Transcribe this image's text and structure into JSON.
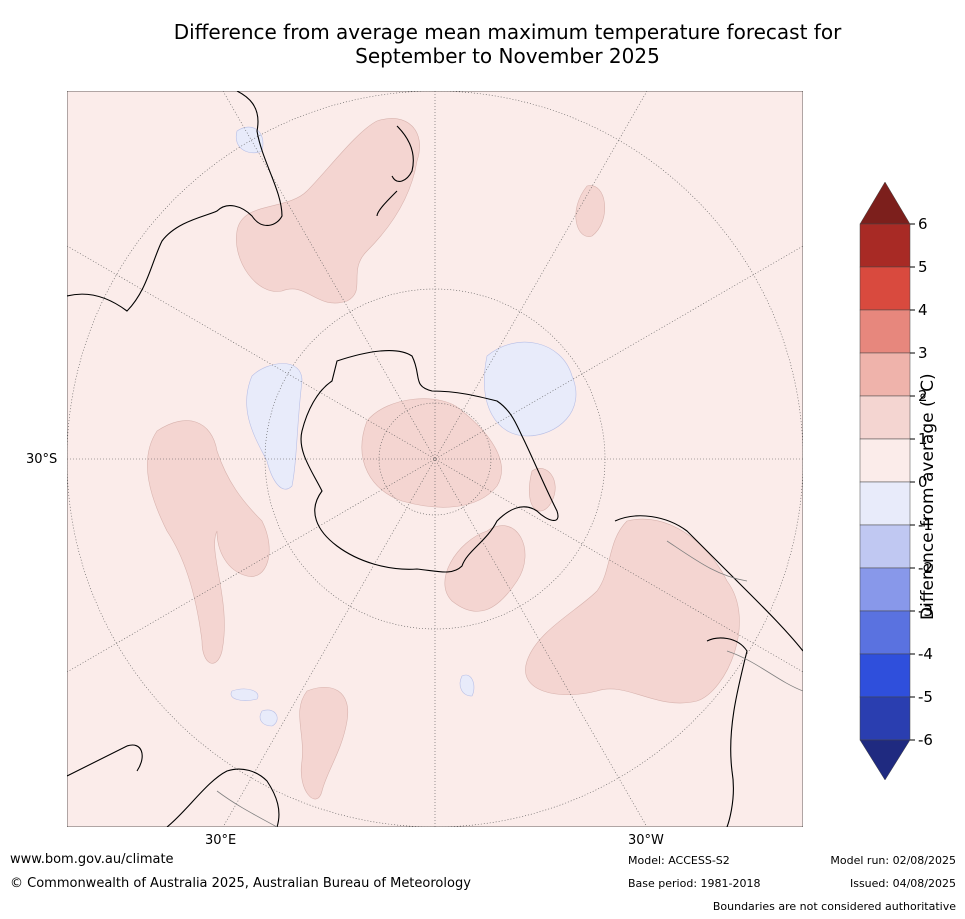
{
  "title": {
    "line1": "Difference from average mean maximum temperature forecast for",
    "line2": "September to November 2025"
  },
  "map": {
    "projection": "south-polar-stereographic",
    "labels": {
      "lat_30s": "30°S",
      "lon_30e": "30°E",
      "lon_30w": "30°W"
    },
    "colors": {
      "background": "#fbecea",
      "warm_1_2": "#f4d5d1",
      "cool_0_-1": "#e8ebfa",
      "coast": "#000000",
      "border": "#808080"
    }
  },
  "colorbar": {
    "label": "Difference from average (°C)",
    "ticks": [
      "6",
      "5",
      "4",
      "3",
      "2",
      "1",
      "0",
      "-1",
      "-2",
      "-3",
      "-4",
      "-5",
      "-6"
    ],
    "bands": [
      {
        "from": 6,
        "to": 7,
        "color": "#7c1f1c"
      },
      {
        "from": 5,
        "to": 6,
        "color": "#a82a25"
      },
      {
        "from": 4,
        "to": 5,
        "color": "#d94a3e"
      },
      {
        "from": 3,
        "to": 4,
        "color": "#e7877d"
      },
      {
        "from": 2,
        "to": 3,
        "color": "#efb3ab"
      },
      {
        "from": 1,
        "to": 2,
        "color": "#f4d5d1"
      },
      {
        "from": 0,
        "to": 1,
        "color": "#fbecea"
      },
      {
        "from": -1,
        "to": 0,
        "color": "#e8ebfa"
      },
      {
        "from": -2,
        "to": -1,
        "color": "#c0c8f2"
      },
      {
        "from": -3,
        "to": -2,
        "color": "#8898ea"
      },
      {
        "from": -4,
        "to": -3,
        "color": "#5a72e0"
      },
      {
        "from": -5,
        "to": -4,
        "color": "#2f4fdc"
      },
      {
        "from": -6,
        "to": -5,
        "color": "#2a3eb0"
      },
      {
        "from": -7,
        "to": -6,
        "color": "#1f2a80"
      }
    ]
  },
  "footer": {
    "url": "www.bom.gov.au/climate",
    "copyright": "© Commonwealth of Australia 2025, Australian Bureau of Meteorology",
    "model": "Model: ACCESS-S2",
    "base_period": "Base period: 1981-2018",
    "model_run": "Model run: 02/08/2025",
    "issued": "Issued: 04/08/2025",
    "disclaimer": "Boundaries are not considered authoritative"
  }
}
